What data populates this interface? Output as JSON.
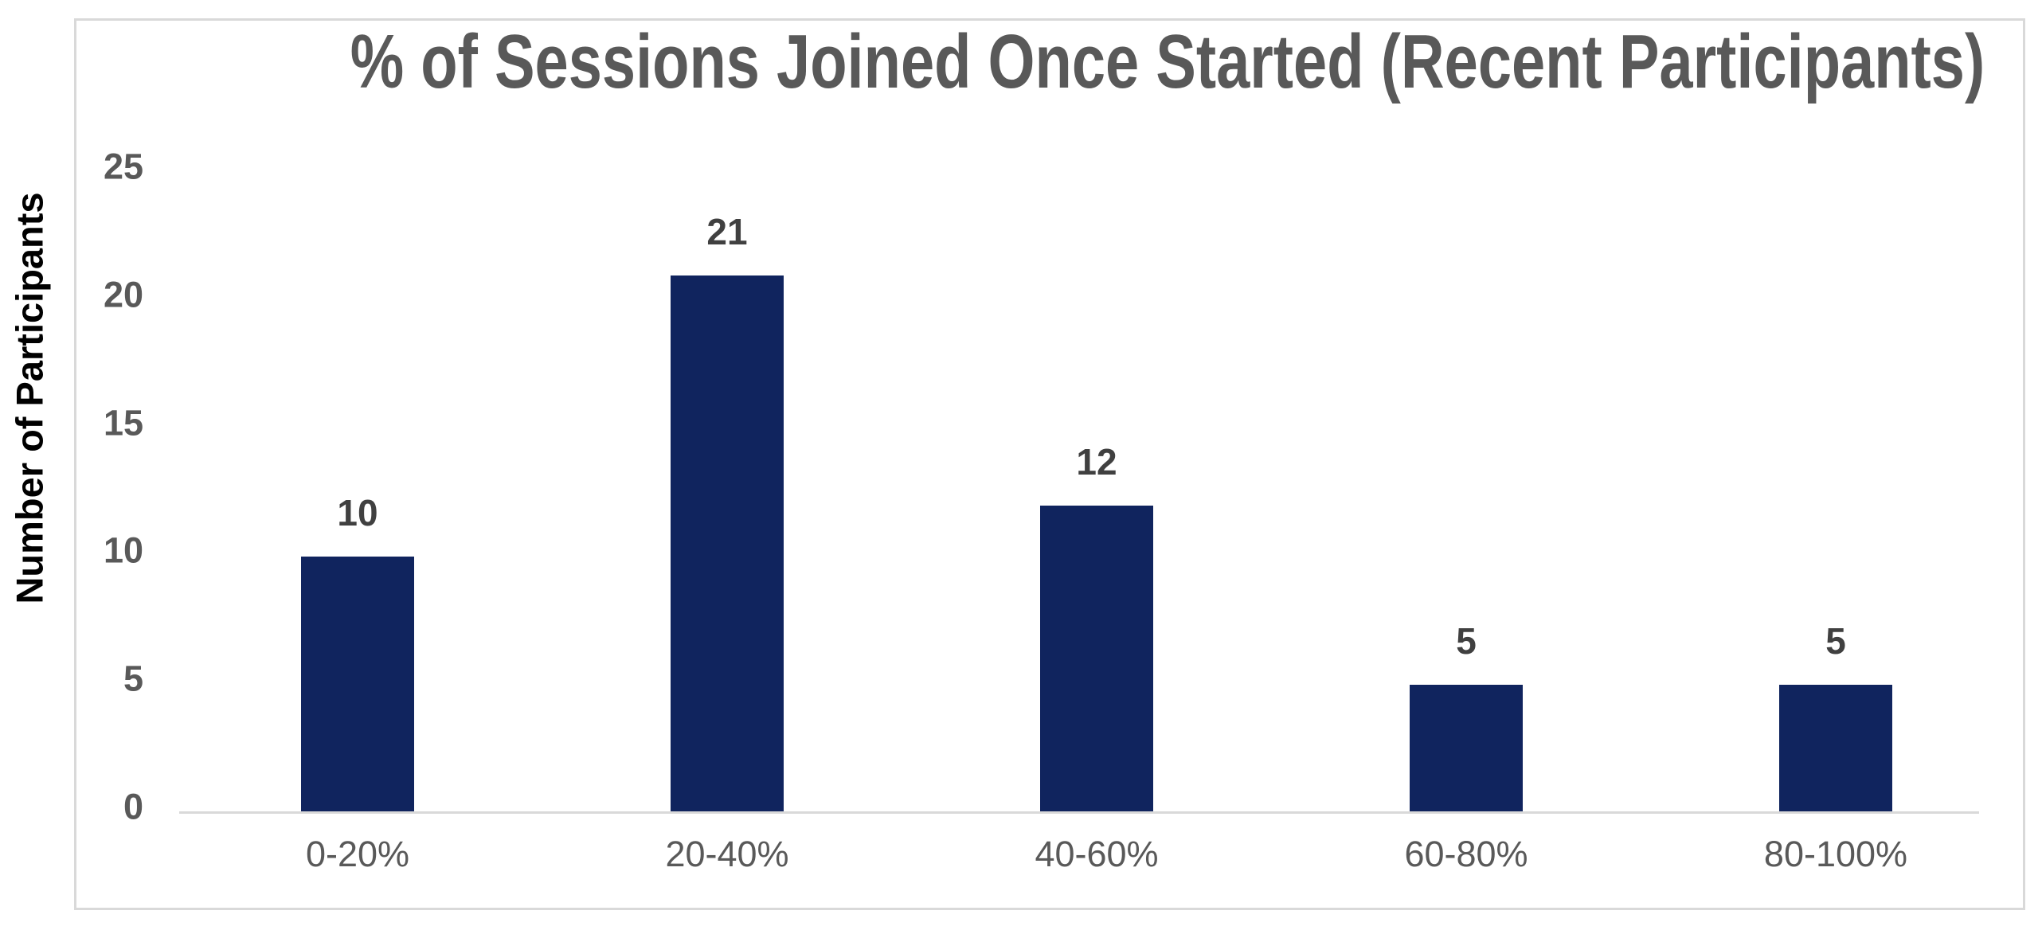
{
  "chart_data": {
    "type": "bar",
    "title": "% of Sessions Joined Once Started (Recent Participants)",
    "categories": [
      "0-20%",
      "20-40%",
      "40-60%",
      "60-80%",
      "80-100%"
    ],
    "values": [
      10,
      21,
      12,
      5,
      5
    ],
    "data_labels": [
      "10",
      "21",
      "12",
      "5",
      "5"
    ],
    "xlabel": "",
    "ylabel": "Number of Participants",
    "ylim": [
      0,
      25
    ],
    "yticks": [
      25,
      20,
      15,
      10,
      5,
      0
    ],
    "grid": false,
    "legend": "none",
    "bar_color": "#10245e"
  },
  "colors": {
    "bar_fill": "#10245e",
    "title_text": "#595959",
    "y_tick_text": "#595959",
    "x_tick_text": "#595959",
    "data_label_text": "#404040",
    "y_axis_title_text": "#000000",
    "axis_line": "#d9d9d9",
    "frame_border": "#d9d9d9",
    "background": "#ffffff"
  }
}
